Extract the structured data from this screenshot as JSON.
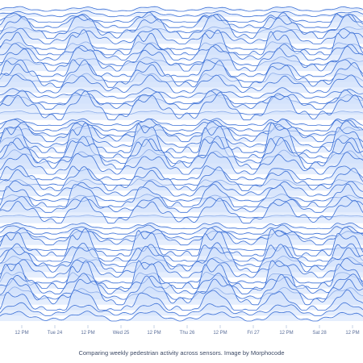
{
  "caption": "Comparing weekly pedestrian activity across sensors. Image by Morphocode",
  "colors": {
    "fill": "#cfe0fb",
    "stroke": "#3c70d6",
    "tick_text": "#5b6f9a",
    "caption_text": "#3d4a66"
  },
  "chart_data": {
    "type": "ridgeline",
    "title": "",
    "xlabel": "",
    "ylabel": "",
    "x_ticks": [
      "12 PM",
      "Tue 24",
      "12 PM",
      "Wed 25",
      "12 PM",
      "Thu 26",
      "12 PM",
      "Fri 27",
      "12 PM",
      "Sat 28",
      "12 PM"
    ],
    "x_range_days": [
      0,
      5.3
    ],
    "series_count": 58,
    "grid": false,
    "legend": "none",
    "note": "58 stacked sensor traces; hourly activity over Mon 23 – Sat 28 with daily peaks near midday"
  }
}
